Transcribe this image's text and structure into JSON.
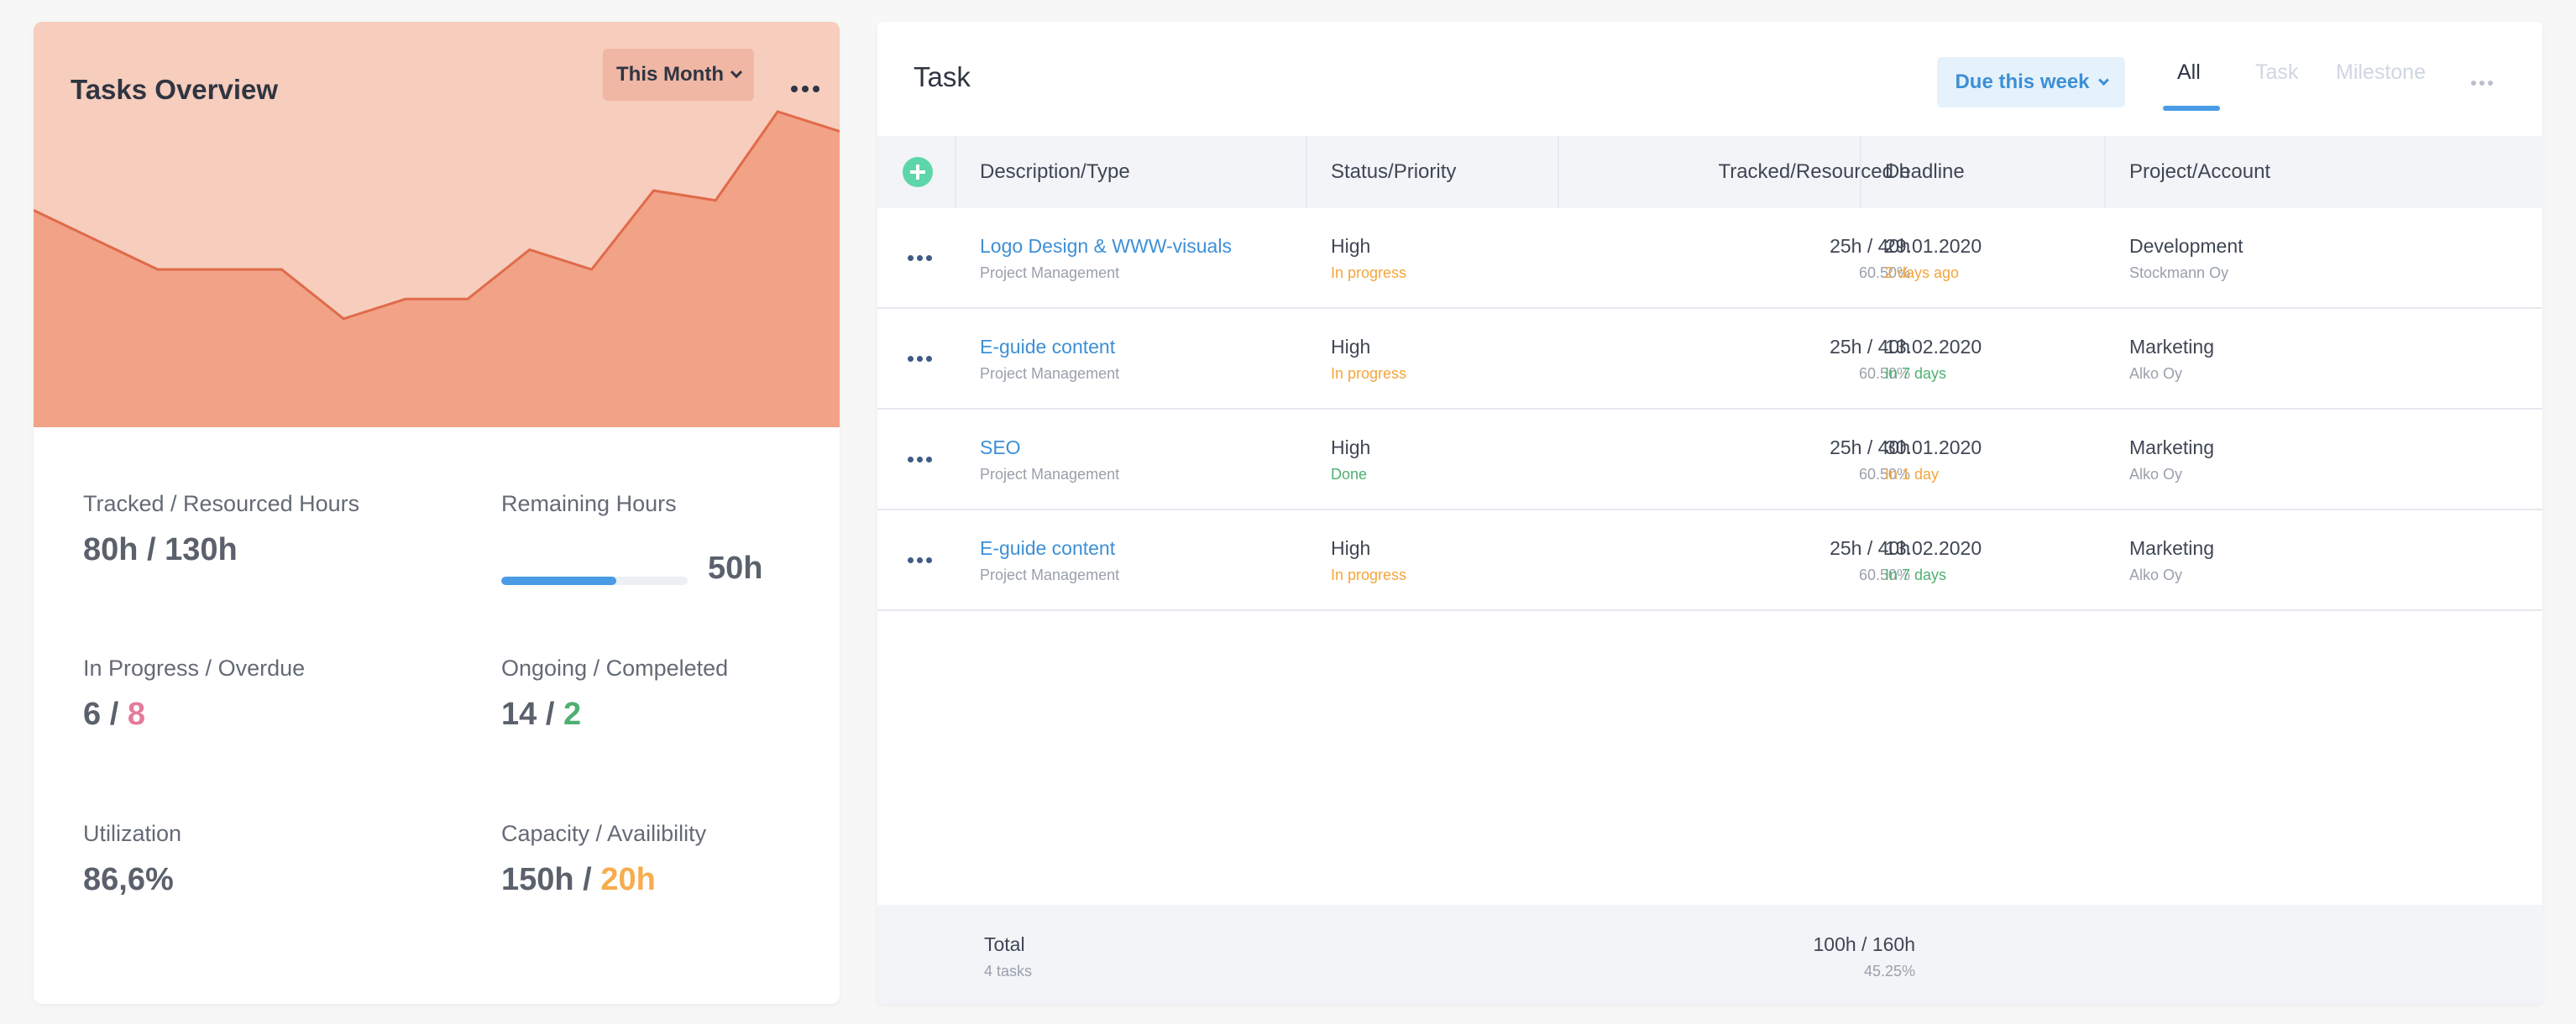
{
  "overview": {
    "title": "Tasks Overview",
    "period_label": "This Month",
    "chart_data": {
      "type": "area",
      "title": "",
      "y_unit": "",
      "values": [
        22,
        19,
        16,
        16,
        16,
        11,
        13,
        13,
        18,
        16,
        24,
        23,
        32,
        30
      ]
    },
    "metrics": {
      "tracked_label": "Tracked / Resourced Hours",
      "tracked_value": "80h / 130h",
      "remaining_label": "Remaining Hours",
      "remaining_value": "50h",
      "remaining_progress_percent": 61.5,
      "inprogress_label": "In Progress / Overdue",
      "inprogress_a": "6",
      "inprogress_sep": " / ",
      "inprogress_b": "8",
      "ongoing_label": "Ongoing / Compeleted",
      "ongoing_a": "14",
      "ongoing_sep": " / ",
      "ongoing_b": "2",
      "utilization_label": "Utilization",
      "utilization_value": "86,6%",
      "capacity_label": "Capacity / Availibility",
      "capacity_a": "150h",
      "capacity_sep": " / ",
      "capacity_b": "20h"
    },
    "colors": {
      "header_bg": "#f7cdbd",
      "area_fill": "#f1a287",
      "line": "#e06a4a",
      "overdue": "#e47b9a",
      "completed": "#4eb071",
      "availability": "#f5ad4e",
      "progress": "#4a9be6"
    }
  },
  "tasks": {
    "title": "Task",
    "filter_label": "Due this week",
    "tabs": [
      "All",
      "Task",
      "Milestone"
    ],
    "columns": {
      "description": "Description/Type",
      "status": "Status/Priority",
      "tracked": "Tracked/Resourced h",
      "deadline": "Deadline",
      "project": "Project/Account"
    },
    "rows": [
      {
        "name": "Logo Design & WWW-visuals",
        "type": "Project Management",
        "priority": "High",
        "status": "In progress",
        "tracked": "25h / 40h",
        "percent": "60.50%",
        "deadline": "29.01.2020",
        "deadline_note": "2 days ago",
        "project": "Development",
        "account": "Stockmann Oy"
      },
      {
        "name": "E-guide content",
        "type": "Project Management",
        "priority": "High",
        "status": "In progress",
        "tracked": "25h / 40h",
        "percent": "60.50%",
        "deadline": "13.02.2020",
        "deadline_note": "In 7 days",
        "project": "Marketing",
        "account": "Alko Oy"
      },
      {
        "name": "SEO",
        "type": "Project Management",
        "priority": "High",
        "status": "Done",
        "tracked": "25h / 40h",
        "percent": "60.50%",
        "deadline": "30.01.2020",
        "deadline_note": "In 1 day",
        "project": "Marketing",
        "account": "Alko Oy"
      },
      {
        "name": "E-guide content",
        "type": "Project Management",
        "priority": "High",
        "status": "In progress",
        "tracked": "25h / 40h",
        "percent": "60.50%",
        "deadline": "13.02.2020",
        "deadline_note": "In 7 days",
        "project": "Marketing",
        "account": "Alko Oy"
      }
    ],
    "footer": {
      "label": "Total",
      "count": "4 tasks",
      "tracked": "100h / 160h",
      "percent": "45.25%"
    }
  }
}
